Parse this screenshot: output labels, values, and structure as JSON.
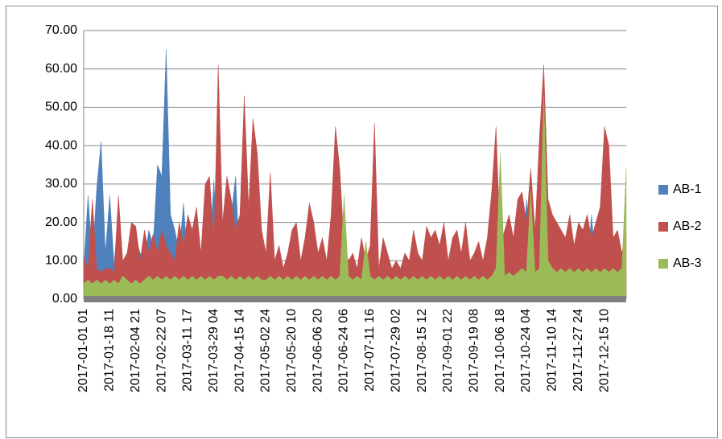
{
  "chart_data": {
    "type": "area",
    "categories": [
      "2017-01-01 01",
      null,
      null,
      null,
      null,
      null,
      "2017-01-18 11",
      null,
      null,
      null,
      null,
      null,
      "2017-02-04 21",
      null,
      null,
      null,
      null,
      null,
      "2017-02-22 07",
      null,
      null,
      null,
      null,
      null,
      "2017-03-11 17",
      null,
      null,
      null,
      null,
      null,
      "2017-03-29 04",
      null,
      null,
      null,
      null,
      null,
      "2017-04-15 14",
      null,
      null,
      null,
      null,
      null,
      "2017-05-02 24",
      null,
      null,
      null,
      null,
      null,
      "2017-05-20 10",
      null,
      null,
      null,
      null,
      null,
      "2017-06-06 20",
      null,
      null,
      null,
      null,
      null,
      "2017-06-24 06",
      null,
      null,
      null,
      null,
      null,
      "2017-07-11 16",
      null,
      null,
      null,
      null,
      null,
      "2017-07-29 02",
      null,
      null,
      null,
      null,
      null,
      "2017-08-15 12",
      null,
      null,
      null,
      null,
      null,
      "2017-09-01 22",
      null,
      null,
      null,
      null,
      null,
      "2017-09-19 08",
      null,
      null,
      null,
      null,
      null,
      "2017-10-06 18",
      null,
      null,
      null,
      null,
      null,
      "2017-10-24 04",
      null,
      null,
      null,
      null,
      null,
      "2017-11-10 14",
      null,
      null,
      null,
      null,
      null,
      "2017-11-27 24",
      null,
      null,
      null,
      null,
      null,
      "2017-12-15 10",
      null,
      null,
      null,
      null,
      null
    ],
    "series": [
      {
        "name": "AB-1",
        "color": "#4f81bd",
        "values": [
          8,
          27,
          10,
          29,
          41,
          12,
          27,
          9,
          22,
          10,
          8,
          14,
          16,
          12,
          10,
          18,
          14,
          35,
          32,
          65,
          22,
          18,
          12,
          25,
          8,
          10,
          22,
          6,
          8,
          12,
          31,
          8,
          10,
          24,
          22,
          32,
          8,
          6,
          10,
          28,
          8,
          6,
          7,
          6,
          8,
          6,
          7,
          6,
          6,
          7,
          6,
          8,
          6,
          7,
          6,
          6,
          7,
          6,
          8,
          6,
          7,
          6,
          6,
          7,
          6,
          8,
          6,
          7,
          6,
          6,
          7,
          8,
          6,
          7,
          6,
          6,
          7,
          6,
          8,
          6,
          7,
          6,
          6,
          7,
          6,
          8,
          6,
          7,
          6,
          9,
          7,
          6,
          8,
          6,
          7,
          6,
          27,
          8,
          7,
          6,
          8,
          7,
          26,
          8,
          7,
          6,
          7,
          8,
          14,
          7,
          6,
          8,
          7,
          6,
          7,
          8,
          7,
          22,
          8,
          7,
          6,
          8,
          7,
          6,
          8,
          7
        ]
      },
      {
        "name": "AB-2",
        "color": "#c0504d",
        "values": [
          11,
          8,
          26,
          8,
          7,
          8,
          8,
          7,
          27,
          10,
          12,
          20,
          19,
          10,
          18,
          12,
          17,
          12,
          18,
          14,
          12,
          10,
          20,
          14,
          22,
          18,
          24,
          12,
          30,
          32,
          14,
          61,
          20,
          32,
          26,
          18,
          22,
          53,
          24,
          47,
          38,
          18,
          12,
          33,
          10,
          14,
          8,
          12,
          18,
          20,
          10,
          16,
          25,
          20,
          12,
          16,
          10,
          22,
          45,
          34,
          14,
          10,
          12,
          8,
          16,
          10,
          14,
          46,
          8,
          16,
          12,
          8,
          10,
          8,
          12,
          10,
          18,
          12,
          10,
          19,
          16,
          18,
          14,
          20,
          10,
          16,
          18,
          12,
          20,
          10,
          12,
          15,
          10,
          16,
          28,
          45,
          14,
          18,
          22,
          16,
          26,
          28,
          20,
          34,
          18,
          42,
          61,
          26,
          22,
          20,
          18,
          16,
          22,
          14,
          20,
          18,
          22,
          16,
          20,
          24,
          45,
          40,
          16,
          18,
          12,
          18
        ]
      },
      {
        "name": "AB-3",
        "color": "#9bbb59",
        "values": [
          4,
          5,
          4,
          5,
          4,
          5,
          4,
          5,
          4,
          6,
          5,
          4,
          5,
          4,
          5,
          6,
          5,
          6,
          5,
          6,
          5,
          6,
          5,
          6,
          5,
          6,
          5,
          6,
          5,
          6,
          5,
          6,
          6,
          5,
          6,
          5,
          6,
          5,
          6,
          5,
          6,
          5,
          5,
          6,
          5,
          6,
          5,
          6,
          5,
          6,
          5,
          6,
          5,
          6,
          5,
          6,
          5,
          6,
          5,
          6,
          27,
          6,
          5,
          6,
          5,
          15,
          6,
          5,
          6,
          5,
          6,
          5,
          6,
          5,
          6,
          5,
          6,
          5,
          6,
          5,
          6,
          5,
          6,
          5,
          6,
          5,
          6,
          5,
          6,
          5,
          6,
          5,
          6,
          5,
          6,
          8,
          38,
          6,
          7,
          6,
          7,
          8,
          7,
          28,
          7,
          8,
          53,
          10,
          8,
          7,
          8,
          7,
          8,
          7,
          8,
          7,
          8,
          7,
          8,
          7,
          8,
          7,
          8,
          7,
          8,
          34
        ]
      }
    ],
    "ylim": [
      0,
      70
    ],
    "yticks": [
      {
        "value": 0,
        "label": "0.00"
      },
      {
        "value": 10,
        "label": "10.00"
      },
      {
        "value": 20,
        "label": "20.00"
      },
      {
        "value": 30,
        "label": "30.00"
      },
      {
        "value": 40,
        "label": "40.00"
      },
      {
        "value": 50,
        "label": "50.00"
      },
      {
        "value": 60,
        "label": "60.00"
      },
      {
        "value": 70,
        "label": "70.00"
      }
    ],
    "grid": true
  }
}
